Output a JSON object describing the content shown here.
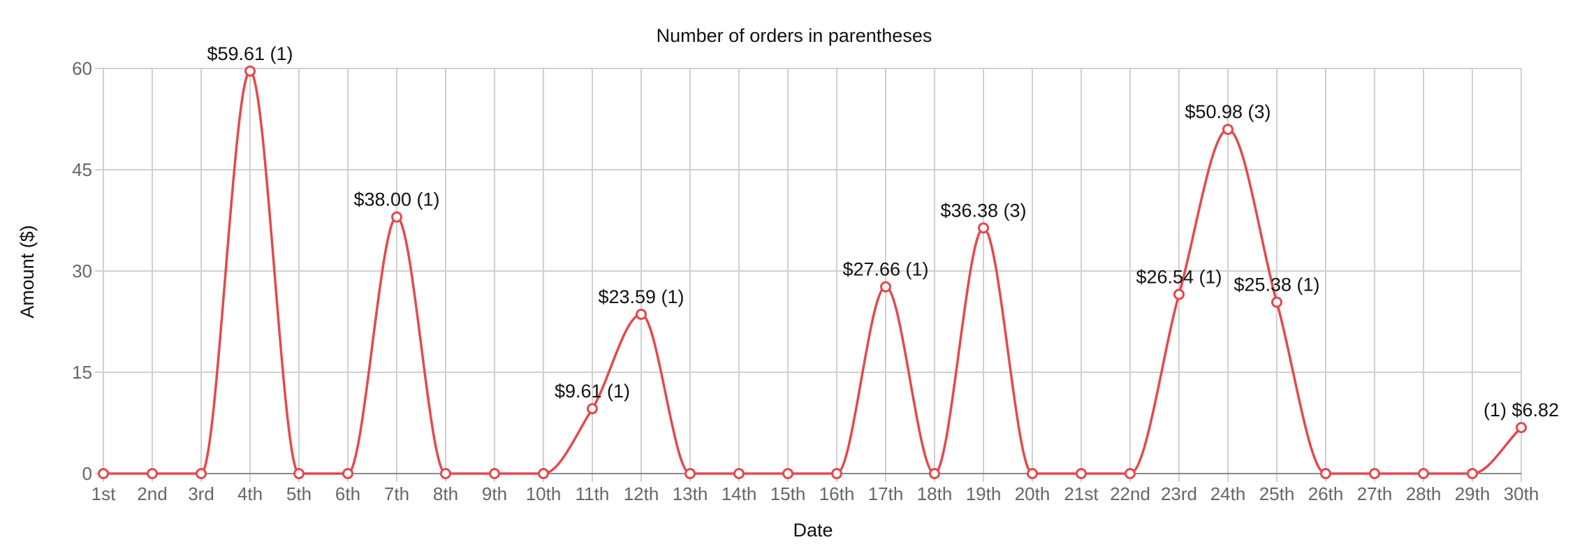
{
  "chart_data": {
    "type": "line",
    "title": "Number of orders in parentheses",
    "xlabel": "Date",
    "ylabel": "Amount ($)",
    "categories": [
      "1st",
      "2nd",
      "3rd",
      "4th",
      "5th",
      "6th",
      "7th",
      "8th",
      "9th",
      "10th",
      "11th",
      "12th",
      "13th",
      "14th",
      "15th",
      "16th",
      "17th",
      "18th",
      "19th",
      "20th",
      "21st",
      "22nd",
      "23rd",
      "24th",
      "25th",
      "26th",
      "27th",
      "28th",
      "29th",
      "30th"
    ],
    "ylim": [
      0,
      60
    ],
    "yticks": [
      0,
      15,
      30,
      45,
      60
    ],
    "grid": true,
    "smooth": true,
    "series": [
      {
        "color": "#e5484d",
        "values": [
          0,
          0,
          0,
          59.61,
          0,
          0,
          38.0,
          0,
          0,
          0,
          9.61,
          23.59,
          0,
          0,
          0,
          0,
          27.66,
          0,
          36.38,
          0,
          0,
          0,
          26.54,
          50.98,
          25.38,
          0,
          0,
          0,
          0,
          6.82
        ],
        "data_labels": [
          "",
          "",
          "",
          "$59.61 (1)",
          "",
          "",
          "$38.00 (1)",
          "",
          "",
          "",
          "$9.61 (1)",
          "$23.59 (1)",
          "",
          "",
          "",
          "",
          "$27.66 (1)",
          "",
          "$36.38 (3)",
          "",
          "",
          "",
          "$26.54 (1)",
          "$50.98 (3)",
          "$25.38 (1)",
          "",
          "",
          "",
          "",
          "(1) $6.82"
        ]
      }
    ]
  }
}
